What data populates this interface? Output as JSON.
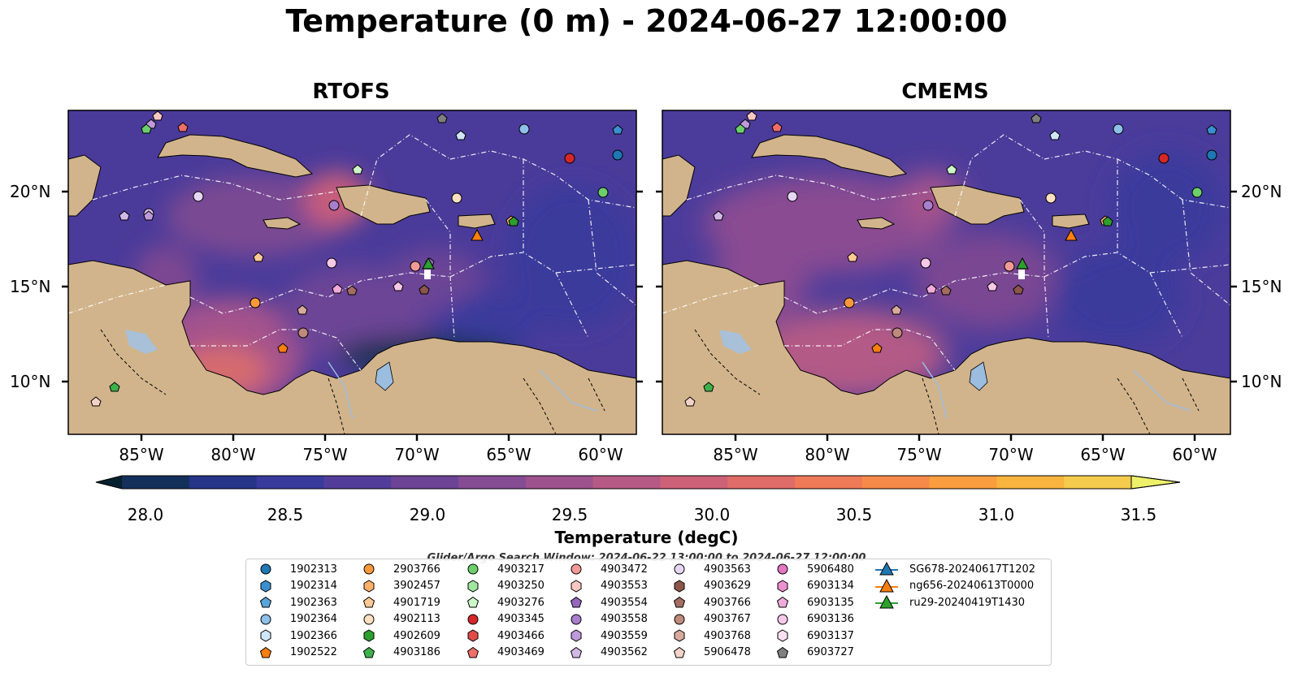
{
  "title": "Temperature (0 m) - 2024-06-27 12:00:00",
  "panels": [
    {
      "name": "RTOFS"
    },
    {
      "name": "CMEMS"
    }
  ],
  "lat_ticks": [
    "20°N",
    "15°N",
    "10°N"
  ],
  "lon_ticks": [
    "85°W",
    "80°W",
    "75°W",
    "70°W",
    "65°W",
    "60°W"
  ],
  "colorbar": {
    "label": "Temperature (degC)",
    "ticks": [
      "28.0",
      "28.5",
      "29.0",
      "29.5",
      "30.0",
      "30.5",
      "31.0",
      "31.5"
    ],
    "colors": [
      "#06202e",
      "#13305a",
      "#263587",
      "#383a9c",
      "#523e9a",
      "#6c4496",
      "#854c93",
      "#9d528d",
      "#b65a85",
      "#cc6178",
      "#df6c69",
      "#ee7a57",
      "#f68a48",
      "#f99d3f",
      "#f8b43e",
      "#f4cb4b",
      "#eef06a"
    ]
  },
  "legend": {
    "caption": "Glider/Argo Search Window: 2024-06-22 13:00:00 to 2024-06-27 12:00:00",
    "entries": [
      {
        "label": "1902313",
        "marker": "circle",
        "color": "#1f77b4"
      },
      {
        "label": "1902314",
        "marker": "hexagon",
        "color": "#3a8fd0"
      },
      {
        "label": "1902363",
        "marker": "pentagon",
        "color": "#5aa4dc"
      },
      {
        "label": "1902364",
        "marker": "circle",
        "color": "#8ec1ea"
      },
      {
        "label": "1902366",
        "marker": "hexagon",
        "color": "#cfe6f8"
      },
      {
        "label": "1902522",
        "marker": "pentagon",
        "color": "#ff7f0e"
      },
      {
        "label": "2903766",
        "marker": "circle",
        "color": "#ff9a3c"
      },
      {
        "label": "3902457",
        "marker": "hexagon",
        "color": "#ffb06b"
      },
      {
        "label": "4901719",
        "marker": "pentagon",
        "color": "#ffc995"
      },
      {
        "label": "4902113",
        "marker": "circle",
        "color": "#ffe0c0"
      },
      {
        "label": "4902609",
        "marker": "hexagon",
        "color": "#2ca02c"
      },
      {
        "label": "4903186",
        "marker": "pentagon",
        "color": "#3fb14a"
      },
      {
        "label": "4903217",
        "marker": "circle",
        "color": "#6ccf6c"
      },
      {
        "label": "4903250",
        "marker": "hexagon",
        "color": "#9fe69f"
      },
      {
        "label": "4903276",
        "marker": "pentagon",
        "color": "#ccf5c8"
      },
      {
        "label": "4903345",
        "marker": "circle",
        "color": "#d62728"
      },
      {
        "label": "4903466",
        "marker": "hexagon",
        "color": "#e34a4a"
      },
      {
        "label": "4903469",
        "marker": "pentagon",
        "color": "#ee6e68"
      },
      {
        "label": "4903472",
        "marker": "circle",
        "color": "#f49a96"
      },
      {
        "label": "4903553",
        "marker": "hexagon",
        "color": "#fbc7c4"
      },
      {
        "label": "4903554",
        "marker": "pentagon",
        "color": "#9467bd"
      },
      {
        "label": "4903558",
        "marker": "circle",
        "color": "#a87fcc"
      },
      {
        "label": "4903559",
        "marker": "hexagon",
        "color": "#bd9ada"
      },
      {
        "label": "4903562",
        "marker": "pentagon",
        "color": "#d2b8e7"
      },
      {
        "label": "4903563",
        "marker": "circle",
        "color": "#e6d6f3"
      },
      {
        "label": "4903629",
        "marker": "hexagon",
        "color": "#8c564b"
      },
      {
        "label": "4903766",
        "marker": "pentagon",
        "color": "#a46d61"
      },
      {
        "label": "4903767",
        "marker": "circle",
        "color": "#bd8a7d"
      },
      {
        "label": "4903768",
        "marker": "hexagon",
        "color": "#d7aa9c"
      },
      {
        "label": "5906478",
        "marker": "pentagon",
        "color": "#f3d3c7"
      },
      {
        "label": "5906480",
        "marker": "circle",
        "color": "#e377c2"
      },
      {
        "label": "6903134",
        "marker": "hexagon",
        "color": "#eb91d0"
      },
      {
        "label": "6903135",
        "marker": "pentagon",
        "color": "#f1acdc"
      },
      {
        "label": "6903136",
        "marker": "circle",
        "color": "#f7c8e7"
      },
      {
        "label": "6903137",
        "marker": "hexagon",
        "color": "#fbe0f1"
      },
      {
        "label": "6903727",
        "marker": "pentagon",
        "color": "#7f7f7f"
      },
      {
        "label": "SG678-20240617T1202",
        "marker": "triangle-line",
        "color": "#1f77b4"
      },
      {
        "label": "ng656-20240613T0000",
        "marker": "triangle-line",
        "color": "#ff7f0e"
      },
      {
        "label": "ru29-20240419T1430",
        "marker": "triangle-line",
        "color": "#2ca02c"
      }
    ]
  }
}
